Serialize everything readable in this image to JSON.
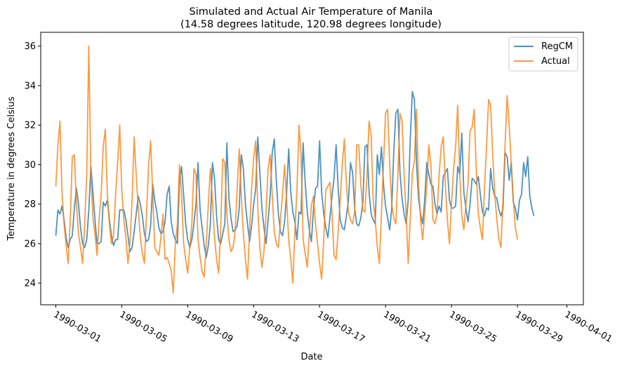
{
  "chart_data": {
    "type": "line",
    "title": "Simulated and Actual Air Temperature of Manila",
    "subtitle": "(14.58 degrees latitude, 120.98 degrees longitude)",
    "xlabel": "Date",
    "ylabel": "Temperature in degrees Celsius",
    "x_ticks": [
      "1990-03-01",
      "1990-03-05",
      "1990-03-09",
      "1990-03-13",
      "1990-03-17",
      "1990-03-21",
      "1990-03-25",
      "1990-03-29",
      "1990-04-01"
    ],
    "y_ticks": [
      24,
      26,
      28,
      30,
      32,
      34,
      36
    ],
    "xlim": [
      "1990-02-28T02:00",
      "1990-04-02T00:00"
    ],
    "ylim": [
      22.9,
      36.7
    ],
    "grid": false,
    "legend_position": "top-right",
    "series": [
      {
        "name": "RegCM",
        "color": "#1f77b4",
        "start": "1990-03-01T00:00",
        "step_hours": 3,
        "values": [
          26.4,
          27.7,
          27.5,
          27.9,
          27.2,
          26.3,
          25.8,
          26.2,
          26.4,
          27.8,
          28.8,
          28.0,
          26.8,
          26.0,
          25.8,
          26.2,
          27.7,
          29.9,
          28.6,
          27.2,
          26.0,
          26.0,
          26.1,
          28.1,
          27.9,
          28.2,
          27.2,
          26.4,
          25.9,
          26.2,
          26.2,
          27.7,
          27.7,
          27.7,
          27.2,
          26.4,
          25.6,
          25.8,
          26.6,
          27.5,
          28.4,
          28.0,
          27.4,
          26.5,
          26.1,
          26.2,
          26.9,
          29.0,
          28.2,
          27.6,
          26.8,
          26.5,
          26.6,
          27.1,
          28.5,
          28.9,
          27.1,
          26.5,
          26.2,
          26.0,
          29.2,
          29.9,
          28.5,
          27.0,
          26.2,
          25.8,
          26.2,
          27.0,
          28.0,
          30.1,
          27.7,
          26.8,
          25.9,
          25.3,
          25.9,
          27.0,
          30.1,
          29.3,
          27.4,
          26.2,
          26.0,
          26.5,
          27.0,
          31.1,
          28.3,
          27.3,
          26.6,
          26.7,
          26.9,
          27.8,
          30.5,
          29.8,
          28.0,
          27.0,
          26.1,
          26.9,
          28.0,
          28.8,
          31.4,
          29.6,
          27.8,
          26.8,
          26.0,
          27.2,
          28.4,
          30.6,
          31.3,
          29.2,
          27.5,
          26.6,
          26.4,
          27.1,
          28.6,
          30.8,
          28.6,
          27.6,
          27.1,
          26.2,
          27.6,
          27.5,
          31.1,
          29.1,
          27.6,
          26.7,
          26.1,
          27.7,
          28.8,
          28.9,
          31.2,
          28.6,
          27.5,
          26.8,
          26.3,
          27.3,
          28.4,
          29.3,
          31.0,
          28.8,
          27.2,
          26.8,
          26.7,
          27.4,
          28.2,
          30.1,
          29.6,
          27.8,
          27.0,
          26.9,
          27.3,
          28.1,
          30.9,
          31.0,
          28.6,
          27.5,
          27.2,
          27.0,
          30.5,
          29.5,
          30.9,
          29.0,
          27.9,
          27.3,
          26.7,
          27.8,
          30.7,
          32.6,
          32.8,
          29.6,
          28.3,
          27.5,
          27.0,
          28.2,
          31.3,
          33.7,
          33.3,
          30.1,
          28.3,
          27.5,
          27.0,
          28.2,
          30.1,
          29.5,
          29.0,
          28.9,
          28.0,
          27.5,
          27.9,
          27.6,
          29.4,
          29.6,
          29.8,
          28.2,
          27.8,
          27.8,
          27.9,
          29.9,
          29.5,
          31.6,
          28.6,
          27.8,
          27.1,
          28.0,
          29.3,
          29.2,
          29.0,
          29.4,
          28.5,
          27.6,
          27.4,
          27.8,
          27.7,
          29.8,
          28.8,
          28.4,
          28.3,
          27.7,
          27.4,
          27.8,
          30.6,
          30.4,
          29.2,
          30.1,
          28.1,
          27.8,
          27.2,
          28.2,
          28.5,
          30.1,
          29.4,
          30.4,
          28.4,
          27.8,
          27.4
        ]
      },
      {
        "name": "Actual",
        "color": "#ff7f0e",
        "start": "1990-03-01T00:00",
        "step_hours": 3,
        "values": [
          28.9,
          31.0,
          32.2,
          28.6,
          27.0,
          25.9,
          25.0,
          27.2,
          30.4,
          30.5,
          28.0,
          26.5,
          25.8,
          25.0,
          27.0,
          29.5,
          36.0,
          29.5,
          27.3,
          26.5,
          25.4,
          27.2,
          28.5,
          30.9,
          31.8,
          28.5,
          27.0,
          26.0,
          26.4,
          28.5,
          30.1,
          32.0,
          28.7,
          27.2,
          26.3,
          25.0,
          26.1,
          28.2,
          31.4,
          29.5,
          27.8,
          26.3,
          25.5,
          25.0,
          27.5,
          29.9,
          31.2,
          28.6,
          25.8,
          25.6,
          25.4,
          26.3,
          27.5,
          25.2,
          25.3,
          25.0,
          24.6,
          23.5,
          26.0,
          27.0,
          30.0,
          28.5,
          26.0,
          25.2,
          24.5,
          25.8,
          27.0,
          29.8,
          29.5,
          26.2,
          25.3,
          24.6,
          24.3,
          26.0,
          28.0,
          29.8,
          28.2,
          26.3,
          25.2,
          24.5,
          26.8,
          30.3,
          30.1,
          27.5,
          26.2,
          25.6,
          25.8,
          26.6,
          28.8,
          30.8,
          28.4,
          26.5,
          25.2,
          24.2,
          26.6,
          28.8,
          30.3,
          31.2,
          27.8,
          25.8,
          24.8,
          25.6,
          27.5,
          29.8,
          30.5,
          28.5,
          26.6,
          26.0,
          25.8,
          27.2,
          28.5,
          30.0,
          28.2,
          26.2,
          25.2,
          24.0,
          26.6,
          28.7,
          32.0,
          30.5,
          26.2,
          25.5,
          24.8,
          26.5,
          27.9,
          28.4,
          27.0,
          26.0,
          25.0,
          24.2,
          26.2,
          28.7,
          28.9,
          29.1,
          27.6,
          25.4,
          25.2,
          26.6,
          28.2,
          30.0,
          31.3,
          29.0,
          27.6,
          27.2,
          27.0,
          27.6,
          31.0,
          31.0,
          29.0,
          27.7,
          27.6,
          29.5,
          32.2,
          31.5,
          28.2,
          27.2,
          25.8,
          25.0,
          27.5,
          30.0,
          32.6,
          32.8,
          30.0,
          28.0,
          27.3,
          27.0,
          29.5,
          32.6,
          32.2,
          29.5,
          27.5,
          25.0,
          27.3,
          29.6,
          30.2,
          32.8,
          29.0,
          27.2,
          26.2,
          27.5,
          29.0,
          31.0,
          30.0,
          27.2,
          27.0,
          27.5,
          29.5,
          30.9,
          31.4,
          29.0,
          27.2,
          26.0,
          28.0,
          29.8,
          30.9,
          33.0,
          29.5,
          27.4,
          26.7,
          28.0,
          29.0,
          31.7,
          31.9,
          32.8,
          29.8,
          27.5,
          26.8,
          26.2,
          28.8,
          30.9,
          33.3,
          33.0,
          30.5,
          28.5,
          27.2,
          26.2,
          25.8,
          28.2,
          31.0,
          33.5,
          32.0,
          30.0,
          28.2,
          26.8,
          26.2
        ]
      }
    ]
  }
}
